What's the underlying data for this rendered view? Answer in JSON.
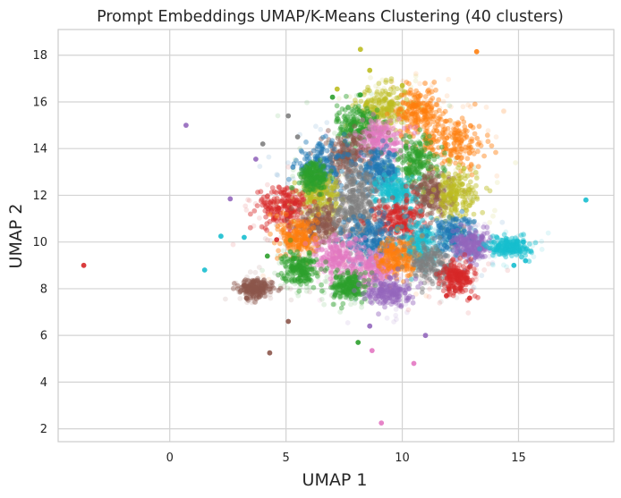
{
  "chart_data": {
    "type": "scatter",
    "title": "Prompt Embeddings UMAP/K-Means Clustering (40 clusters)",
    "xlabel": "UMAP 1",
    "ylabel": "UMAP 2",
    "xlim": [
      -4.8,
      19.1
    ],
    "ylim": [
      1.45,
      19.1
    ],
    "xticks": [
      0,
      5,
      10,
      15
    ],
    "yticks": [
      2,
      4,
      6,
      8,
      10,
      12,
      14,
      16,
      18
    ],
    "grid": true,
    "colors": {
      "background": "#ffffff",
      "grid": "#d3d3d3",
      "axes": "#cccccc",
      "text": "#262626",
      "palette": [
        "#1f77b4",
        "#ff7f0e",
        "#2ca02c",
        "#d62728",
        "#9467bd",
        "#8c564b",
        "#e377c2",
        "#7f7f7f",
        "#bcbd22",
        "#17becf"
      ]
    },
    "clusters": [
      {
        "cx": 9.2,
        "cy": 15.8,
        "sx": 0.55,
        "sy": 0.45,
        "c": 8
      },
      {
        "cx": 10.7,
        "cy": 15.6,
        "sx": 0.45,
        "sy": 0.5,
        "c": 1
      },
      {
        "cx": 8.1,
        "cy": 15.0,
        "sx": 0.45,
        "sy": 0.45,
        "c": 2
      },
      {
        "cx": 9.0,
        "cy": 14.4,
        "sx": 0.55,
        "sy": 0.45,
        "c": 6
      },
      {
        "cx": 12.2,
        "cy": 14.3,
        "sx": 0.7,
        "sy": 0.55,
        "c": 1
      },
      {
        "cx": 7.6,
        "cy": 13.7,
        "sx": 0.5,
        "sy": 0.45,
        "c": 5
      },
      {
        "cx": 10.6,
        "cy": 13.4,
        "sx": 0.55,
        "sy": 0.55,
        "c": 2
      },
      {
        "cx": 6.5,
        "cy": 13.2,
        "sx": 0.55,
        "sy": 0.5,
        "c": 0
      },
      {
        "cx": 9.0,
        "cy": 13.0,
        "sx": 0.45,
        "sy": 0.45,
        "c": 0
      },
      {
        "cx": 8.0,
        "cy": 12.2,
        "sx": 0.55,
        "sy": 0.6,
        "c": 7
      },
      {
        "cx": 6.4,
        "cy": 12.0,
        "sx": 0.45,
        "sy": 0.45,
        "c": 8
      },
      {
        "cx": 9.8,
        "cy": 12.1,
        "sx": 0.45,
        "sy": 0.4,
        "c": 9
      },
      {
        "cx": 11.3,
        "cy": 12.0,
        "sx": 0.45,
        "sy": 0.45,
        "c": 5
      },
      {
        "cx": 12.3,
        "cy": 12.0,
        "sx": 0.45,
        "sy": 0.55,
        "c": 8
      },
      {
        "cx": 4.9,
        "cy": 11.5,
        "sx": 0.55,
        "sy": 0.45,
        "c": 3
      },
      {
        "cx": 6.5,
        "cy": 10.8,
        "sx": 0.5,
        "sy": 0.4,
        "c": 5
      },
      {
        "cx": 8.0,
        "cy": 11.0,
        "sx": 0.55,
        "sy": 0.55,
        "c": 7
      },
      {
        "cx": 9.8,
        "cy": 10.9,
        "sx": 0.5,
        "sy": 0.45,
        "c": 3
      },
      {
        "cx": 5.6,
        "cy": 10.2,
        "sx": 0.4,
        "sy": 0.45,
        "c": 1
      },
      {
        "cx": 8.7,
        "cy": 10.1,
        "sx": 0.55,
        "sy": 0.55,
        "c": 0
      },
      {
        "cx": 10.7,
        "cy": 10.0,
        "sx": 0.45,
        "sy": 0.45,
        "c": 9
      },
      {
        "cx": 12.2,
        "cy": 10.3,
        "sx": 0.5,
        "sy": 0.45,
        "c": 0
      },
      {
        "cx": 7.2,
        "cy": 9.4,
        "sx": 0.55,
        "sy": 0.45,
        "c": 6
      },
      {
        "cx": 8.7,
        "cy": 8.9,
        "sx": 0.5,
        "sy": 0.4,
        "c": 6
      },
      {
        "cx": 9.8,
        "cy": 9.3,
        "sx": 0.45,
        "sy": 0.45,
        "c": 1
      },
      {
        "cx": 11.3,
        "cy": 9.0,
        "sx": 0.5,
        "sy": 0.45,
        "c": 7
      },
      {
        "cx": 5.6,
        "cy": 8.9,
        "sx": 0.35,
        "sy": 0.35,
        "c": 2
      },
      {
        "cx": 13.0,
        "cy": 9.8,
        "sx": 0.4,
        "sy": 0.3,
        "c": 4
      },
      {
        "cx": 7.7,
        "cy": 8.1,
        "sx": 0.35,
        "sy": 0.3,
        "c": 2
      },
      {
        "cx": 9.4,
        "cy": 7.9,
        "sx": 0.45,
        "sy": 0.3,
        "c": 4
      },
      {
        "cx": 14.6,
        "cy": 9.8,
        "sx": 0.45,
        "sy": 0.2,
        "c": 9
      },
      {
        "cx": 12.4,
        "cy": 8.5,
        "sx": 0.35,
        "sy": 0.35,
        "c": 3
      },
      {
        "cx": 6.2,
        "cy": 12.8,
        "sx": 0.3,
        "sy": 0.3,
        "c": 2
      },
      {
        "cx": 3.7,
        "cy": 8.0,
        "sx": 0.35,
        "sy": 0.2,
        "c": 5
      }
    ],
    "outliers": [
      {
        "x": 8.2,
        "y": 18.25,
        "c": 8
      },
      {
        "x": 13.2,
        "y": 18.15,
        "c": 1
      },
      {
        "x": 8.6,
        "y": 17.35,
        "c": 8
      },
      {
        "x": 7.2,
        "y": 16.55,
        "c": 8
      },
      {
        "x": 10.0,
        "y": 16.7,
        "c": 8
      },
      {
        "x": 7.0,
        "y": 16.2,
        "c": 2
      },
      {
        "x": 8.2,
        "y": 16.3,
        "c": 2
      },
      {
        "x": 5.1,
        "y": 15.4,
        "c": 7
      },
      {
        "x": 5.5,
        "y": 14.5,
        "c": 7
      },
      {
        "x": 0.7,
        "y": 15.0,
        "c": 4
      },
      {
        "x": 4.0,
        "y": 14.2,
        "c": 7
      },
      {
        "x": 3.7,
        "y": 13.55,
        "c": 4
      },
      {
        "x": 2.6,
        "y": 11.85,
        "c": 4
      },
      {
        "x": 17.9,
        "y": 11.8,
        "c": 9
      },
      {
        "x": 2.2,
        "y": 10.25,
        "c": 9
      },
      {
        "x": 3.2,
        "y": 10.2,
        "c": 9
      },
      {
        "x": -3.7,
        "y": 9.0,
        "c": 3
      },
      {
        "x": 1.5,
        "y": 8.8,
        "c": 9
      },
      {
        "x": 15.3,
        "y": 9.2,
        "c": 9
      },
      {
        "x": 14.8,
        "y": 9.0,
        "c": 9
      },
      {
        "x": 15.2,
        "y": 10.0,
        "c": 9
      },
      {
        "x": 12.9,
        "y": 7.6,
        "c": 3
      },
      {
        "x": 11.9,
        "y": 7.7,
        "c": 3
      },
      {
        "x": 5.1,
        "y": 6.6,
        "c": 5
      },
      {
        "x": 11.0,
        "y": 6.0,
        "c": 4
      },
      {
        "x": 8.6,
        "y": 6.4,
        "c": 4
      },
      {
        "x": 8.1,
        "y": 5.7,
        "c": 2
      },
      {
        "x": 8.7,
        "y": 5.35,
        "c": 6
      },
      {
        "x": 4.3,
        "y": 5.25,
        "c": 5
      },
      {
        "x": 10.5,
        "y": 4.8,
        "c": 6
      },
      {
        "x": 9.1,
        "y": 2.25,
        "c": 6
      },
      {
        "x": 3.3,
        "y": 7.6,
        "c": 5
      },
      {
        "x": 4.2,
        "y": 9.4,
        "c": 2
      },
      {
        "x": 4.6,
        "y": 10.1,
        "c": 3
      }
    ]
  }
}
